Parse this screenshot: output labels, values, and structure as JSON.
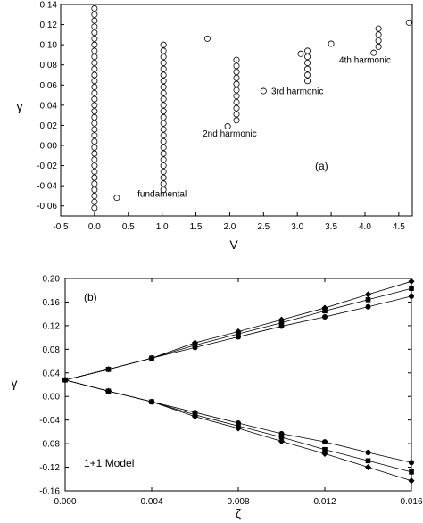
{
  "chart_data": [
    {
      "type": "scatter",
      "panel_label": "(a)",
      "xlabel": "V",
      "ylabel": "γ",
      "xlim": [
        -0.5,
        4.7
      ],
      "ylim": [
        -0.07,
        0.14
      ],
      "xticks": [
        "-0.5",
        "0.0",
        "0.5",
        "1.0",
        "1.5",
        "2.0",
        "2.5",
        "3.0",
        "3.5",
        "4.0",
        "4.5"
      ],
      "yticks": [
        "-0.06",
        "-0.04",
        "-0.02",
        "0.00",
        "0.02",
        "0.04",
        "0.06",
        "0.08",
        "0.10",
        "0.12",
        "0.14"
      ],
      "marker": "open-circle",
      "annotations": [
        {
          "text": "fundamental",
          "x": 1.0,
          "y": -0.051
        },
        {
          "text": "2nd harmonic",
          "x": 2.0,
          "y": 0.009
        },
        {
          "text": "3rd harmonic",
          "x": 3.0,
          "y": 0.051
        },
        {
          "text": "4th harmonic",
          "x": 4.0,
          "y": 0.082
        }
      ],
      "series": [
        {
          "values": [
            [
              0.0,
              -0.062
            ],
            [
              0.0,
              -0.056
            ],
            [
              0.0,
              -0.05
            ],
            [
              0.0,
              -0.044
            ],
            [
              0.0,
              -0.038
            ],
            [
              0.0,
              -0.032
            ],
            [
              0.0,
              -0.026
            ],
            [
              0.0,
              -0.02
            ],
            [
              0.0,
              -0.014
            ],
            [
              0.0,
              -0.008
            ],
            [
              0.0,
              -0.002
            ],
            [
              0.0,
              0.004
            ],
            [
              0.0,
              0.01
            ],
            [
              0.0,
              0.016
            ],
            [
              0.0,
              0.022
            ],
            [
              0.0,
              0.028
            ],
            [
              0.0,
              0.034
            ],
            [
              0.0,
              0.04
            ],
            [
              0.0,
              0.046
            ],
            [
              0.0,
              0.052
            ],
            [
              0.0,
              0.058
            ],
            [
              0.0,
              0.064
            ],
            [
              0.0,
              0.07
            ],
            [
              0.0,
              0.076
            ],
            [
              0.0,
              0.082
            ],
            [
              0.0,
              0.088
            ],
            [
              0.0,
              0.094
            ],
            [
              0.0,
              0.1
            ],
            [
              0.0,
              0.106
            ],
            [
              0.0,
              0.112
            ],
            [
              0.0,
              0.118
            ],
            [
              0.0,
              0.124
            ],
            [
              0.0,
              0.13
            ],
            [
              0.0,
              0.136
            ],
            [
              0.33,
              -0.052
            ],
            [
              1.02,
              -0.044
            ],
            [
              1.02,
              -0.038
            ],
            [
              1.02,
              -0.032
            ],
            [
              1.02,
              -0.026
            ],
            [
              1.02,
              -0.02
            ],
            [
              1.02,
              -0.014
            ],
            [
              1.02,
              -0.008
            ],
            [
              1.02,
              -0.002
            ],
            [
              1.02,
              0.004
            ],
            [
              1.02,
              0.01
            ],
            [
              1.02,
              0.016
            ],
            [
              1.02,
              0.022
            ],
            [
              1.02,
              0.028
            ],
            [
              1.02,
              0.034
            ],
            [
              1.02,
              0.04
            ],
            [
              1.02,
              0.046
            ],
            [
              1.02,
              0.052
            ],
            [
              1.02,
              0.058
            ],
            [
              1.02,
              0.064
            ],
            [
              1.02,
              0.07
            ],
            [
              1.02,
              0.076
            ],
            [
              1.02,
              0.082
            ],
            [
              1.02,
              0.088
            ],
            [
              1.02,
              0.094
            ],
            [
              1.02,
              0.1
            ],
            [
              1.67,
              0.106
            ],
            [
              1.97,
              0.019
            ],
            [
              2.1,
              0.025
            ],
            [
              2.1,
              0.031
            ],
            [
              2.1,
              0.037
            ],
            [
              2.1,
              0.043
            ],
            [
              2.1,
              0.049
            ],
            [
              2.1,
              0.055
            ],
            [
              2.1,
              0.061
            ],
            [
              2.1,
              0.067
            ],
            [
              2.1,
              0.073
            ],
            [
              2.1,
              0.079
            ],
            [
              2.1,
              0.085
            ],
            [
              2.5,
              0.054
            ],
            [
              3.05,
              0.091
            ],
            [
              3.15,
              0.064
            ],
            [
              3.15,
              0.07
            ],
            [
              3.15,
              0.076
            ],
            [
              3.15,
              0.082
            ],
            [
              3.15,
              0.088
            ],
            [
              3.15,
              0.094
            ],
            [
              3.5,
              0.101
            ],
            [
              4.13,
              0.092
            ],
            [
              4.2,
              0.098
            ],
            [
              4.2,
              0.104
            ],
            [
              4.2,
              0.11
            ],
            [
              4.2,
              0.116
            ],
            [
              4.65,
              0.122
            ]
          ]
        }
      ]
    },
    {
      "type": "line",
      "panel_label": "(b)",
      "xlabel": "ζ",
      "ylabel": "γ",
      "xlim": [
        0.0,
        0.016
      ],
      "ylim": [
        -0.16,
        0.2
      ],
      "xticks": [
        "0.000",
        "0.004",
        "0.008",
        "0.012",
        "0.016"
      ],
      "yticks": [
        "-0.16",
        "-0.12",
        "-0.08",
        "-0.04",
        "0.00",
        "0.04",
        "0.08",
        "0.12",
        "0.16",
        "0.20"
      ],
      "annotation": "1+1 Model",
      "x": [
        0.0,
        0.002,
        0.004,
        0.006,
        0.008,
        0.01,
        0.012,
        0.014,
        0.016
      ],
      "series": [
        {
          "marker": "diamond",
          "values": [
            0.028,
            0.046,
            0.065,
            0.091,
            0.11,
            0.13,
            0.15,
            0.173,
            0.195
          ]
        },
        {
          "marker": "square",
          "values": [
            0.028,
            0.046,
            0.065,
            0.087,
            0.106,
            0.125,
            0.145,
            0.164,
            0.183
          ]
        },
        {
          "marker": "circle",
          "values": [
            0.028,
            0.046,
            0.065,
            0.083,
            0.101,
            0.119,
            0.135,
            0.152,
            0.17
          ]
        },
        {
          "marker": "diamond",
          "values": [
            0.028,
            0.009,
            -0.009,
            -0.034,
            -0.054,
            -0.076,
            -0.097,
            -0.12,
            -0.143
          ]
        },
        {
          "marker": "square",
          "values": [
            0.028,
            0.009,
            -0.009,
            -0.031,
            -0.05,
            -0.069,
            -0.09,
            -0.109,
            -0.128
          ]
        },
        {
          "marker": "circle",
          "values": [
            0.028,
            0.009,
            -0.009,
            -0.027,
            -0.045,
            -0.063,
            -0.077,
            -0.095,
            -0.112
          ]
        }
      ]
    }
  ]
}
